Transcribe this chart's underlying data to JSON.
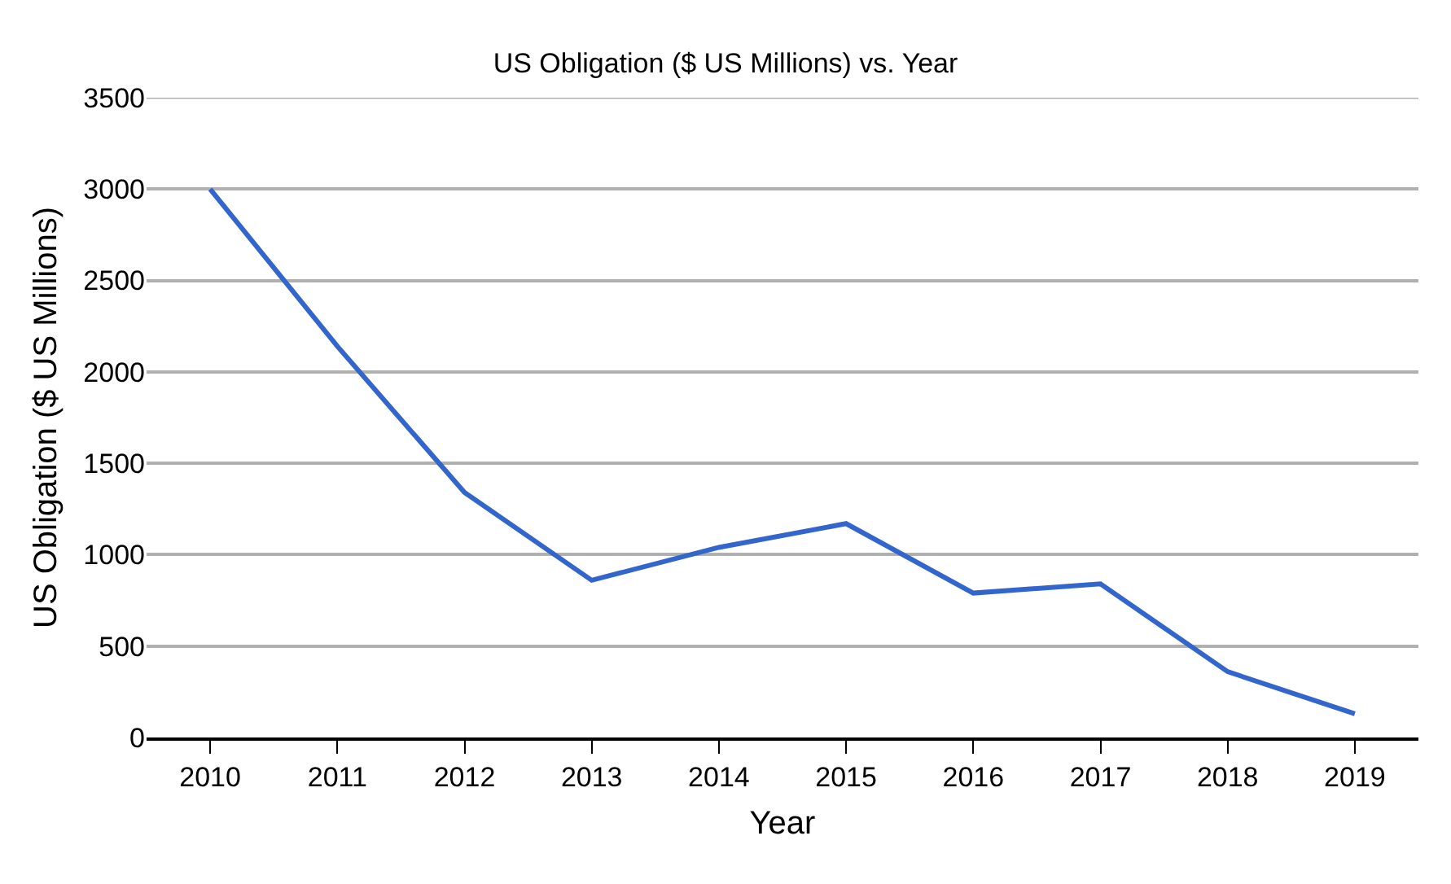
{
  "chart_data": {
    "type": "line",
    "title": "US Obligation ($ US Millions) vs. Year",
    "xlabel": "Year",
    "ylabel": "US Obligation ($ US Millions)",
    "categories": [
      "2010",
      "2011",
      "2012",
      "2013",
      "2014",
      "2015",
      "2016",
      "2017",
      "2018",
      "2019"
    ],
    "series": [
      {
        "color": "#3366cc",
        "values": [
          3000,
          2140,
          1340,
          860,
          1040,
          1170,
          790,
          840,
          360,
          130
        ]
      }
    ],
    "ylim": [
      0,
      3500
    ],
    "yticks": [
      0,
      500,
      1000,
      1500,
      2000,
      2500,
      3000,
      3500
    ],
    "grid": "y",
    "marker": "none",
    "line_style": "solid"
  }
}
